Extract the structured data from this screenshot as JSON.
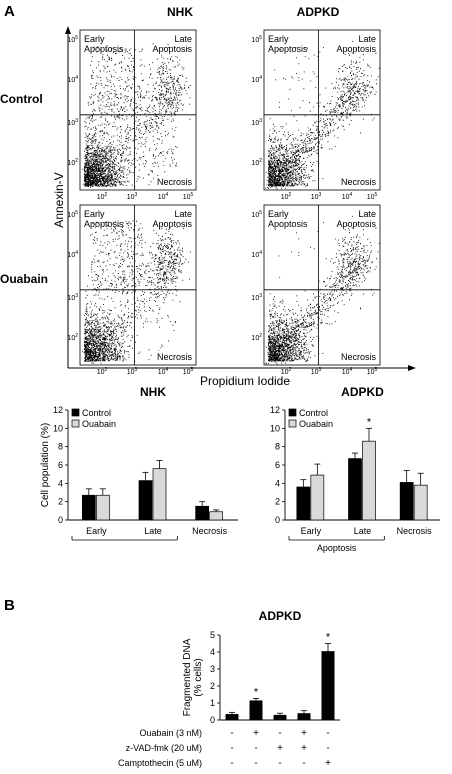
{
  "panel_a_label": "A",
  "panel_b_label": "B",
  "flow": {
    "col_titles": [
      "NHK",
      "ADPKD"
    ],
    "row_titles": [
      "Control",
      "Ouabain"
    ],
    "y_axis_label": "Annexin-V",
    "x_axis_label": "Propidium Iodide",
    "quadrant_labels": {
      "early": [
        "Early",
        "Apoptosis"
      ],
      "late": [
        "Late",
        "Apoptosis"
      ],
      "necrosis": "Necrosis"
    },
    "y_ticks": [
      "10^5",
      "10^4",
      "10^3",
      "10^2"
    ],
    "x_ticks": [
      "10^2",
      "10^3",
      "10^4",
      "10^5"
    ]
  },
  "chart_data": [
    {
      "type": "bar",
      "title": "NHK",
      "ylabel": "Cell population (%)",
      "ylim": [
        0,
        12
      ],
      "yticks": [
        "0",
        "2",
        "4",
        "6",
        "8",
        "10",
        "12"
      ],
      "categories": [
        "Early",
        "Late",
        "Necrosis"
      ],
      "category_group_label": "",
      "series": [
        {
          "name": "Control",
          "color": "#000000",
          "values": [
            2.7,
            4.3,
            1.5
          ],
          "errors": [
            0.7,
            0.9,
            0.5
          ]
        },
        {
          "name": "Ouabain",
          "color": "#d9d9d9",
          "values": [
            2.7,
            5.6,
            0.9
          ],
          "errors": [
            0.7,
            0.9,
            0.2
          ]
        }
      ],
      "annotations": [],
      "legend": "top-left"
    },
    {
      "type": "bar",
      "title": "ADPKD",
      "ylabel": "",
      "ylim": [
        0,
        12
      ],
      "yticks": [
        "0",
        "2",
        "4",
        "6",
        "8",
        "10",
        "12"
      ],
      "categories": [
        "Early",
        "Late",
        "Necrosis"
      ],
      "category_group_label": "Apoptosis",
      "series": [
        {
          "name": "Control",
          "color": "#000000",
          "values": [
            3.6,
            6.7,
            4.1
          ],
          "errors": [
            0.8,
            0.6,
            1.3
          ]
        },
        {
          "name": "Ouabain",
          "color": "#d9d9d9",
          "values": [
            4.9,
            8.6,
            3.8
          ],
          "errors": [
            1.2,
            1.4,
            1.3
          ]
        }
      ],
      "annotations": [
        {
          "category": "Late",
          "series": "Ouabain",
          "text": "*"
        }
      ],
      "legend": "top-left"
    },
    {
      "type": "bar",
      "title": "ADPKD",
      "ylabel": "Fragmented DNA\n(% cells)",
      "ylim": [
        0,
        5
      ],
      "yticks": [
        "0",
        "1",
        "2",
        "3",
        "4",
        "5"
      ],
      "categories": [
        "1",
        "2",
        "3",
        "4",
        "5"
      ],
      "values": [
        0.35,
        1.15,
        0.3,
        0.4,
        4.05
      ],
      "errors": [
        0.1,
        0.12,
        0.1,
        0.15,
        0.45
      ],
      "annotations": [
        "",
        "*",
        "",
        "",
        "*"
      ],
      "treatments": [
        {
          "label": "Ouabain (3 nM)",
          "marks": [
            "-",
            "+",
            "-",
            "+",
            "-"
          ]
        },
        {
          "label": "z-VAD-fmk (20 uM)",
          "marks": [
            "-",
            "-",
            "+",
            "+",
            "-"
          ]
        },
        {
          "label": "Camptothecin (5 uM)",
          "marks": [
            "-",
            "-",
            "-",
            "-",
            "+"
          ]
        }
      ]
    }
  ]
}
